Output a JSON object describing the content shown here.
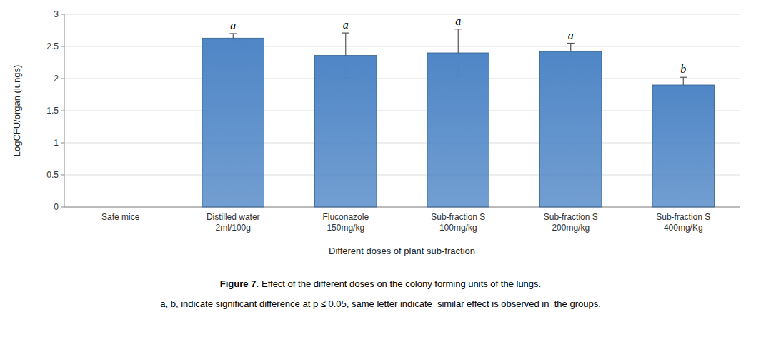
{
  "chart_data": {
    "type": "bar",
    "categories": [
      "Safe mice",
      "Distilled water\n2ml/100g",
      "Fluconazole\n150mg/kg",
      "Sub-fraction S\n100mg/kg",
      "Sub-fraction S\n200mg/kg",
      "Sub-fraction S\n400mg/Kg"
    ],
    "values": [
      0,
      2.63,
      2.36,
      2.4,
      2.42,
      1.9
    ],
    "errors": [
      0,
      0.07,
      0.35,
      0.37,
      0.13,
      0.12
    ],
    "annotations": [
      null,
      "a",
      "a",
      "a",
      "a",
      "b"
    ],
    "color": "#4f86c6",
    "ylabel": "LogCFU/organ (lungs)",
    "xlabel": "Different doses of plant sub-fraction",
    "ylim": [
      0,
      3
    ],
    "yticks": [
      0,
      0.5,
      1,
      1.5,
      2,
      2.5,
      3
    ],
    "grid": true,
    "caption_bold": "Figure 7.",
    "caption": "Effect of the different doses on the colony forming units of the lungs.",
    "note": "a, b, indicate significant difference at p ≤ 0.05, same letter indicate  similar effect is observed in  the groups."
  }
}
